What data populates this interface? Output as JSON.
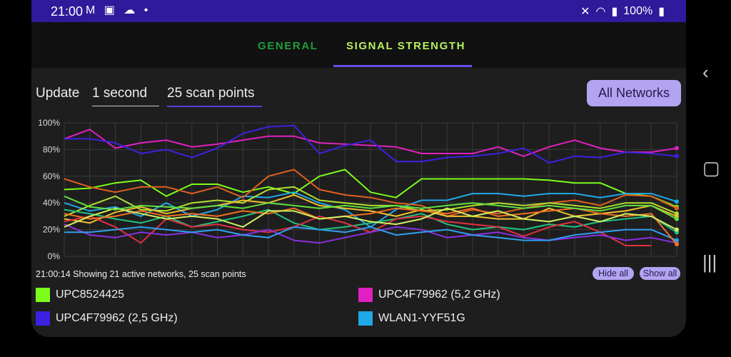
{
  "statusbar": {
    "time": "21:00",
    "notif_icons": "M ▣ ☁ •",
    "battery": "100%"
  },
  "tabs": [
    {
      "label": "GENERAL"
    },
    {
      "label": "SIGNAL STRENGTH"
    }
  ],
  "controls": {
    "update_label": "Update",
    "update_value": "1 second",
    "points_value": "25 scan points",
    "all_networks": "All Networks"
  },
  "summary": "21:00:14 Showing 21 active networks, 25 scan points",
  "buttons": {
    "hide_all": "Hide all",
    "show_all": "Show all"
  },
  "legend": [
    {
      "name": "UPC8524425",
      "color": "#7cfc1c"
    },
    {
      "name": "UPC4F79962 (5,2 GHz)",
      "color": "#e020c0"
    },
    {
      "name": "UPC4F79962 (2,5 GHz)",
      "color": "#3a22e0"
    },
    {
      "name": "WLAN1-YYF51G",
      "color": "#20a8e8"
    }
  ],
  "chart_data": {
    "type": "line",
    "ylim": [
      0,
      100
    ],
    "y_ticks": [
      "0%",
      "20%",
      "40%",
      "60%",
      "80%",
      "100%"
    ],
    "x": [
      1,
      2,
      3,
      4,
      5,
      6,
      7,
      8,
      9,
      10,
      11,
      12,
      13,
      14,
      15,
      16,
      17,
      18,
      19,
      20,
      21,
      22,
      23,
      24,
      25
    ],
    "series": [
      {
        "name": "UPC4F79962 (5,2 GHz)",
        "color": "#e020c0",
        "values": [
          88,
          95,
          81,
          85,
          87,
          82,
          84,
          87,
          90,
          90,
          85,
          84,
          83,
          82,
          77,
          77,
          77,
          82,
          75,
          82,
          87,
          81,
          78,
          78,
          81
        ]
      },
      {
        "name": "UPC4F79962 (2,5 GHz)",
        "color": "#3a22e0",
        "values": [
          88,
          88,
          85,
          77,
          80,
          74,
          81,
          92,
          97,
          98,
          77,
          83,
          87,
          71,
          71,
          74,
          75,
          77,
          81,
          70,
          75,
          74,
          78,
          77,
          75
        ]
      },
      {
        "name": "UPC8524425",
        "color": "#7cfc1c",
        "values": [
          50,
          51,
          55,
          57,
          45,
          54,
          54,
          48,
          52,
          47,
          60,
          65,
          48,
          44,
          58,
          58,
          58,
          58,
          58,
          57,
          55,
          55,
          47,
          45,
          37
        ]
      },
      {
        "name": "WLAN1-YYF51G",
        "color": "#20a8e8",
        "values": [
          40,
          34,
          37,
          30,
          40,
          30,
          35,
          45,
          44,
          48,
          40,
          35,
          22,
          35,
          42,
          42,
          47,
          47,
          45,
          47,
          47,
          44,
          47,
          47,
          41
        ]
      },
      {
        "name": "",
        "color": "#e06020",
        "values": [
          58,
          52,
          48,
          52,
          52,
          47,
          52,
          44,
          60,
          65,
          50,
          46,
          44,
          40,
          38,
          30,
          35,
          32,
          36,
          40,
          42,
          38,
          46,
          45,
          36
        ]
      },
      {
        "name": "",
        "color": "#b0e030",
        "values": [
          30,
          38,
          45,
          35,
          34,
          40,
          42,
          40,
          50,
          52,
          42,
          40,
          38,
          38,
          34,
          35,
          38,
          40,
          38,
          40,
          38,
          36,
          40,
          40,
          32
        ]
      },
      {
        "name": "",
        "color": "#f0c030",
        "values": [
          28,
          25,
          33,
          37,
          32,
          36,
          38,
          42,
          40,
          46,
          38,
          36,
          34,
          30,
          35,
          30,
          30,
          28,
          28,
          36,
          30,
          32,
          34,
          38,
          30
        ]
      },
      {
        "name": "",
        "color": "#20c080",
        "values": [
          35,
          32,
          28,
          25,
          30,
          22,
          26,
          30,
          35,
          25,
          20,
          22,
          25,
          28,
          32,
          24,
          20,
          22,
          20,
          24,
          22,
          26,
          28,
          30,
          18
        ]
      },
      {
        "name": "",
        "color": "#e03040",
        "values": [
          26,
          30,
          22,
          10,
          28,
          22,
          24,
          20,
          18,
          22,
          30,
          25,
          18,
          28,
          30,
          26,
          24,
          22,
          15,
          22,
          26,
          18,
          8,
          8,
          null
        ]
      },
      {
        "name": "",
        "color": "#8a30e0",
        "values": [
          24,
          16,
          14,
          18,
          16,
          18,
          14,
          16,
          20,
          12,
          10,
          14,
          18,
          22,
          20,
          14,
          16,
          18,
          14,
          12,
          14,
          16,
          12,
          14,
          10
        ]
      },
      {
        "name": "",
        "color": "#30a0f0",
        "values": [
          18,
          18,
          20,
          22,
          20,
          18,
          20,
          16,
          14,
          22,
          20,
          18,
          22,
          16,
          18,
          20,
          16,
          14,
          12,
          12,
          16,
          18,
          20,
          20,
          12
        ]
      },
      {
        "name": "",
        "color": "#f07020",
        "values": [
          32,
          28,
          30,
          34,
          30,
          32,
          30,
          34,
          32,
          36,
          28,
          30,
          32,
          36,
          34,
          32,
          36,
          30,
          32,
          34,
          36,
          32,
          30,
          32,
          9
        ]
      },
      {
        "name": "",
        "color": "#d0f060",
        "values": [
          22,
          30,
          36,
          32,
          28,
          30,
          28,
          22,
          34,
          34,
          28,
          30,
          26,
          24,
          28,
          36,
          30,
          34,
          28,
          26,
          30,
          26,
          32,
          30,
          20
        ]
      },
      {
        "name": "",
        "color": "#60e040",
        "values": [
          45,
          37,
          35,
          38,
          37,
          36,
          38,
          36,
          40,
          38,
          36,
          38,
          36,
          38,
          36,
          38,
          40,
          38,
          36,
          38,
          36,
          34,
          38,
          38,
          28
        ]
      }
    ]
  }
}
